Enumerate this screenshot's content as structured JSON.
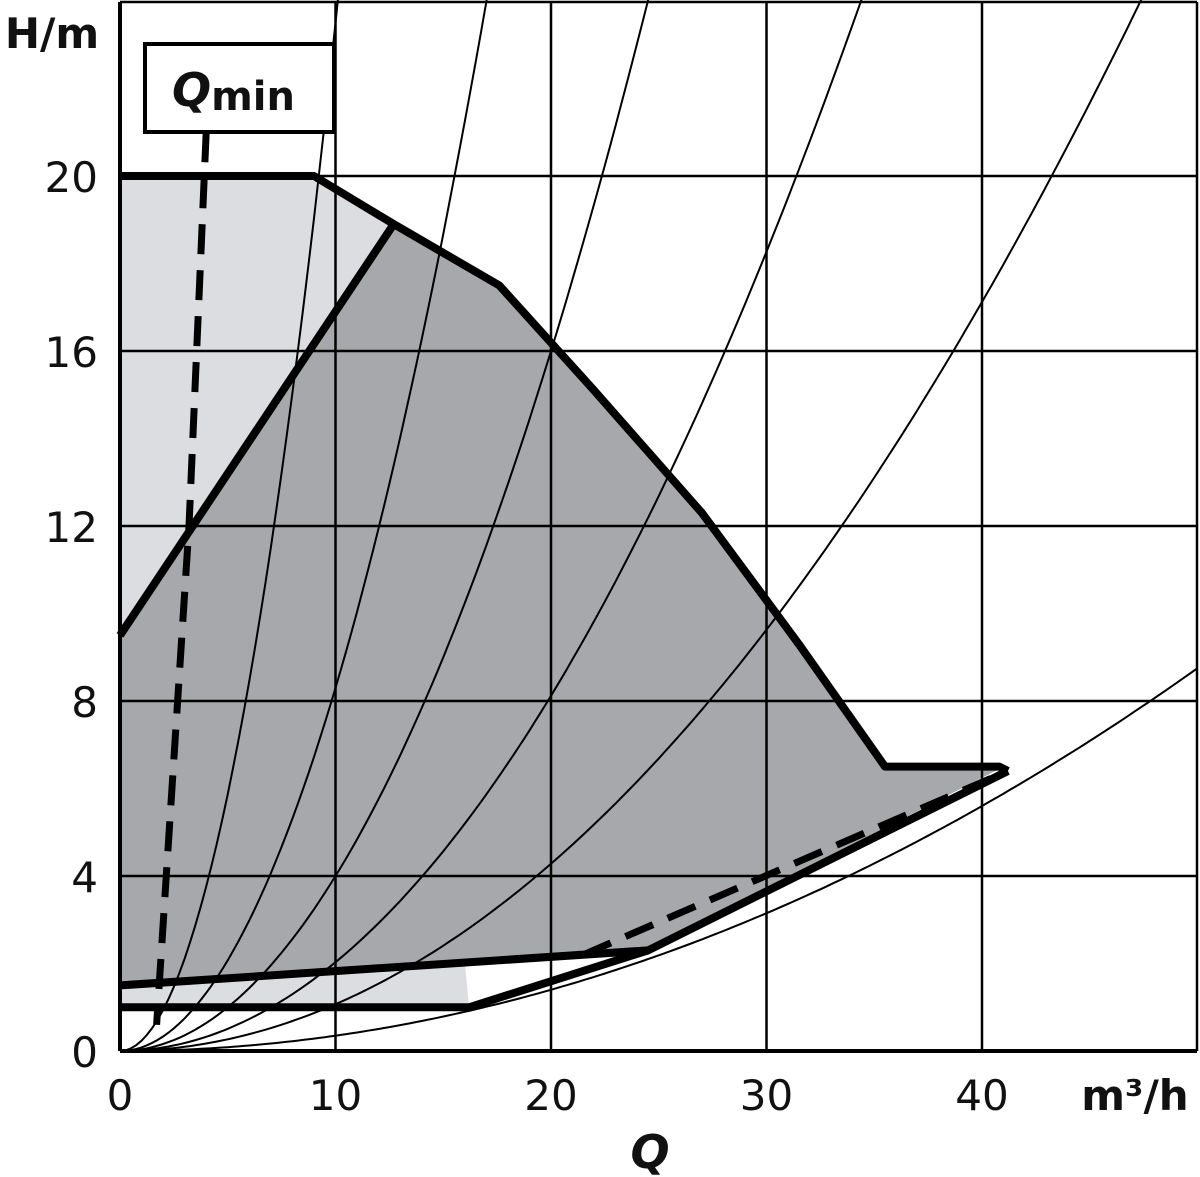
{
  "chart_data": {
    "type": "line",
    "title": "",
    "xlabel": "Q",
    "x_unit": "m³/h",
    "ylabel": "H/m",
    "xlim": [
      0,
      50
    ],
    "ylim": [
      0,
      24
    ],
    "x_ticks": [
      0,
      10,
      20,
      30,
      40
    ],
    "y_ticks": [
      0,
      4,
      8,
      12,
      16,
      20
    ],
    "x_tick_labels": [
      "0",
      "10",
      "20",
      "30",
      "40"
    ],
    "y_tick_labels": [
      "0",
      "4",
      "8",
      "12",
      "16",
      "20"
    ],
    "grid": true,
    "annotation": {
      "label_main": "Q",
      "label_sub": "min"
    },
    "colors": {
      "light_area": "#dcdde0",
      "dark_area": "#a7a8ab",
      "line": "#000000"
    },
    "regions": [
      {
        "name": "light",
        "points": [
          [
            0,
            20
          ],
          [
            9,
            20
          ],
          [
            12.7,
            18.9
          ],
          [
            16.2,
            1
          ],
          [
            0,
            1
          ]
        ]
      },
      {
        "name": "dark",
        "points": [
          [
            0,
            9.5
          ],
          [
            12.7,
            18.9
          ],
          [
            17.6,
            17.5
          ],
          [
            22,
            15.1
          ],
          [
            27,
            12.3
          ],
          [
            31.5,
            9.3
          ],
          [
            35.5,
            6.5
          ],
          [
            41,
            6.5
          ],
          [
            24.5,
            2.3
          ],
          [
            0,
            1.5
          ]
        ]
      }
    ],
    "series": [
      {
        "name": "",
        "style": "thick",
        "points": [
          [
            0,
            20
          ],
          [
            9,
            20
          ],
          [
            12.7,
            18.9
          ],
          [
            17.6,
            17.5
          ],
          [
            22,
            15.1
          ],
          [
            27,
            12.3
          ],
          [
            31.5,
            9.3
          ],
          [
            35.5,
            6.5
          ],
          [
            40.8,
            6.5
          ],
          [
            41.2,
            6.4
          ]
        ]
      },
      {
        "name": "",
        "style": "thick",
        "points": [
          [
            0,
            9.5
          ],
          [
            12.7,
            18.9
          ]
        ]
      },
      {
        "name": "",
        "style": "thick",
        "points": [
          [
            0,
            1.5
          ],
          [
            24.5,
            2.3
          ],
          [
            41.2,
            6.4
          ]
        ]
      },
      {
        "name": "",
        "style": "thick",
        "points": [
          [
            0,
            1
          ],
          [
            16.2,
            1
          ],
          [
            24.5,
            2.3
          ]
        ]
      },
      {
        "name": "",
        "style": "dashed",
        "points": [
          [
            4,
            21
          ],
          [
            3.2,
            12
          ],
          [
            1.7,
            0.6
          ]
        ]
      },
      {
        "name": "",
        "style": "dashed",
        "points": [
          [
            21.5,
            2.2
          ],
          [
            41.2,
            6.4
          ]
        ]
      }
    ],
    "system_curves_k": [
      0.235,
      0.083,
      0.04,
      0.0203,
      0.0107,
      0.0035
    ]
  },
  "labels": {
    "y_axis": "H/m",
    "x_unit": "m³/h",
    "x_axis": "Q",
    "qmin_main": "Q",
    "qmin_sub": "min"
  }
}
